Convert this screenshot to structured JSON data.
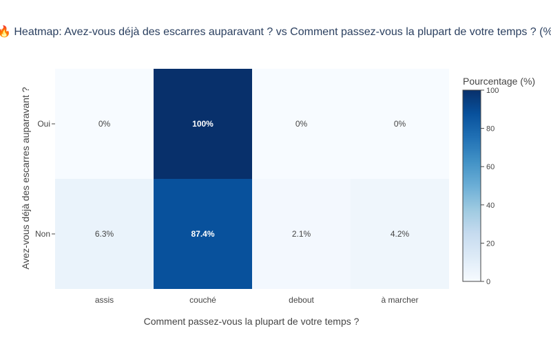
{
  "chart_data": {
    "type": "heatmap",
    "title": "🔥 Heatmap: Avez-vous déjà des escarres auparavant ? vs Comment passez-vous la plupart de votre temps ? (%)",
    "xlabel": "Comment passez-vous la plupart de votre temps ?",
    "ylabel": "Avez-vous déjà des escarres auparavant ?",
    "x_categories": [
      "assis",
      "couché",
      "debout",
      "à marcher"
    ],
    "y_categories": [
      "Oui",
      "Non"
    ],
    "values": [
      [
        0,
        100,
        0,
        0
      ],
      [
        6.3,
        87.4,
        2.1,
        4.2
      ]
    ],
    "cell_labels": [
      [
        "0%",
        "100%",
        "0%",
        "0%"
      ],
      [
        "6.3%",
        "87.4%",
        "2.1%",
        "4.2%"
      ]
    ],
    "colorbar": {
      "title": "Pourcentage (%)",
      "range": [
        0,
        100
      ],
      "ticks": [
        "0",
        "20",
        "40",
        "60",
        "80",
        "100"
      ],
      "colorscale": "Blues"
    }
  }
}
